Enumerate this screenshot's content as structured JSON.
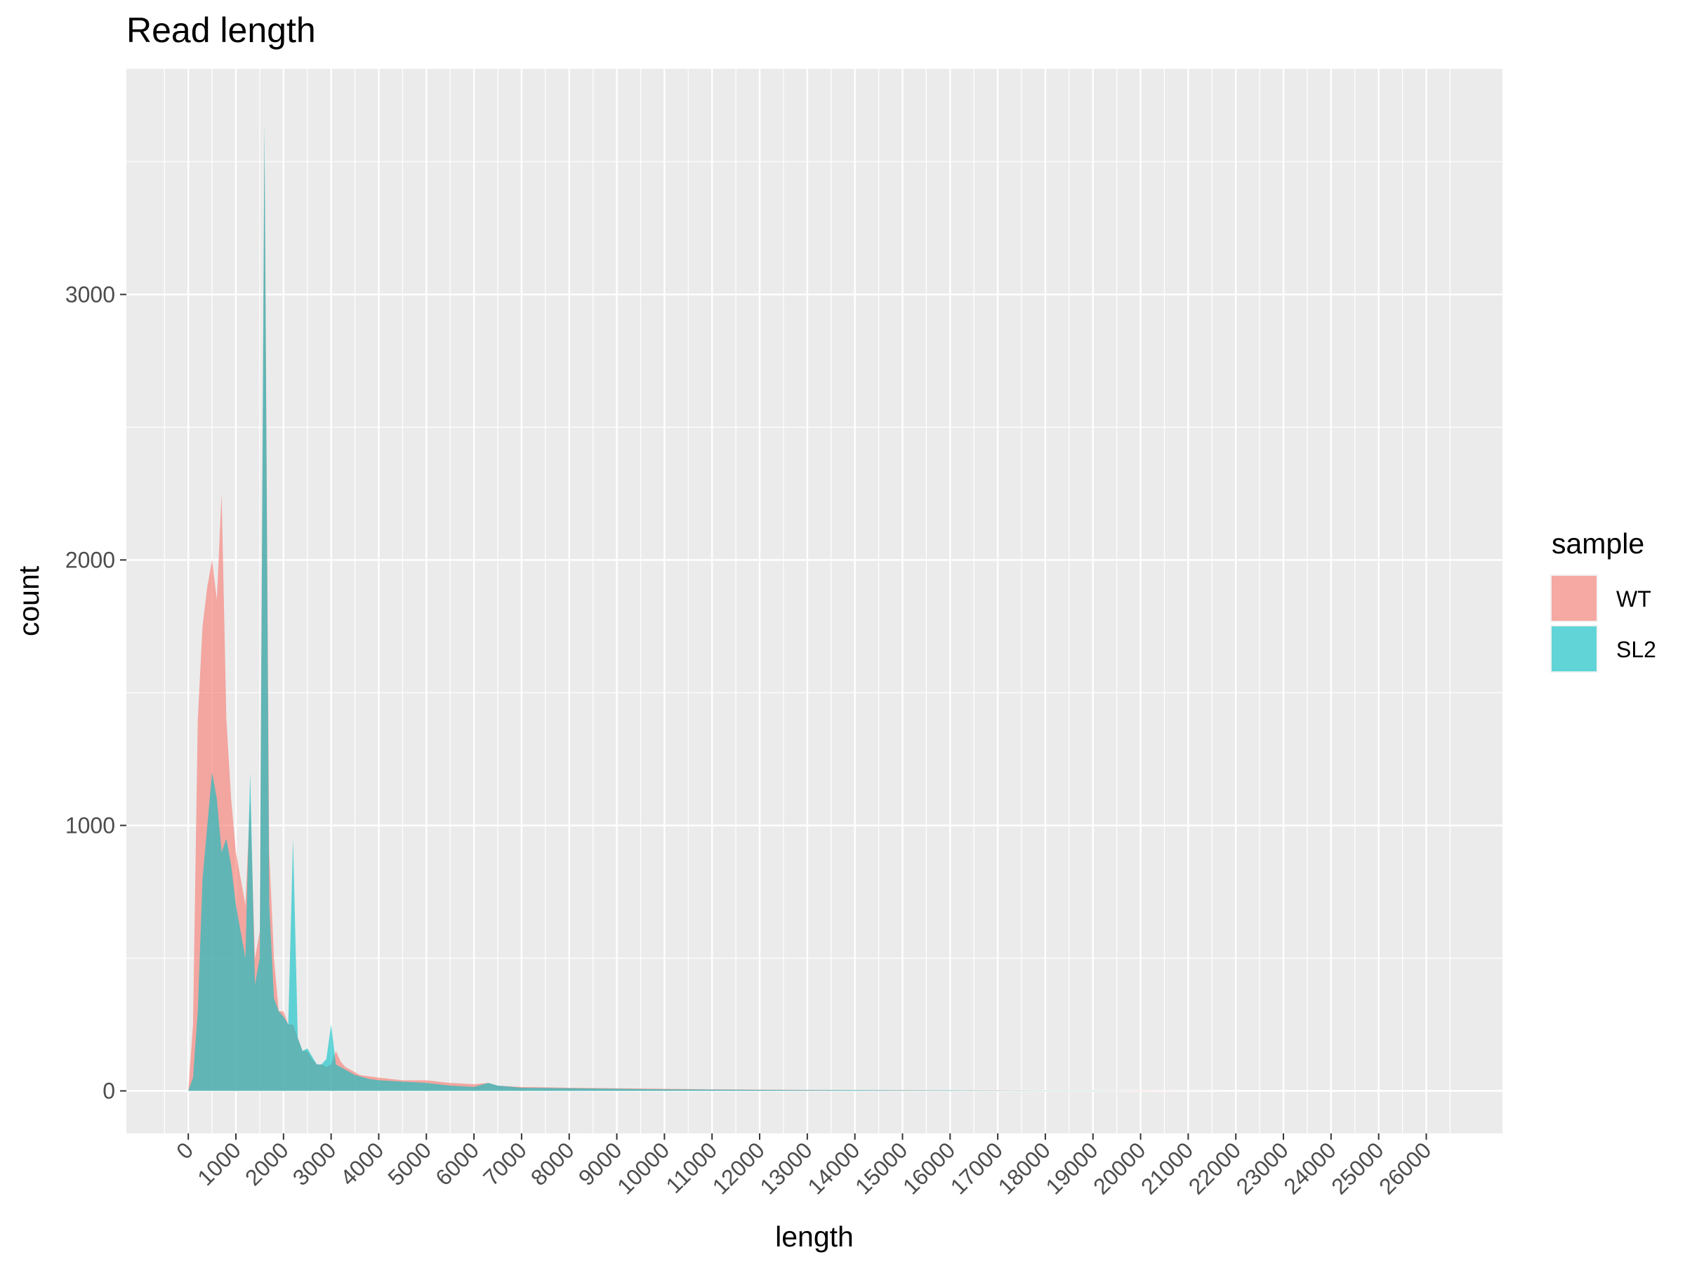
{
  "chart_data": {
    "type": "area",
    "title": "Read length",
    "xlabel": "length",
    "ylabel": "count",
    "xlim": [
      -1300,
      27600
    ],
    "ylim": [
      -160,
      3850
    ],
    "x_ticks": [
      0,
      1000,
      2000,
      3000,
      4000,
      5000,
      6000,
      7000,
      8000,
      9000,
      10000,
      11000,
      12000,
      13000,
      14000,
      15000,
      16000,
      17000,
      18000,
      19000,
      20000,
      21000,
      22000,
      23000,
      24000,
      25000,
      26000
    ],
    "x_tick_labels": [
      "0",
      "1000",
      "2000",
      "3000",
      "4000",
      "5000",
      "6000",
      "7000",
      "8000",
      "9000",
      "10000",
      "11000",
      "12000",
      "13000",
      "14000",
      "15000",
      "16000",
      "17000",
      "18000",
      "19000",
      "20000",
      "21000",
      "22000",
      "23000",
      "24000",
      "25000",
      "26000"
    ],
    "y_ticks": [
      0,
      1000,
      2000,
      3000
    ],
    "y_tick_labels": [
      "0",
      "1000",
      "2000",
      "3000"
    ],
    "grid": true,
    "legend": {
      "title": "sample",
      "position": "right"
    },
    "x": [
      0,
      100,
      200,
      300,
      400,
      500,
      600,
      700,
      800,
      900,
      1000,
      1100,
      1200,
      1300,
      1400,
      1500,
      1600,
      1700,
      1800,
      1900,
      2000,
      2100,
      2200,
      2300,
      2400,
      2500,
      2600,
      2700,
      2800,
      2900,
      3000,
      3100,
      3200,
      3300,
      3400,
      3500,
      3600,
      3800,
      4000,
      4500,
      5000,
      5500,
      6000,
      6300,
      6500,
      7000,
      8000,
      9000,
      10000,
      11000,
      12000,
      13000,
      14000,
      15000,
      16000,
      17000,
      18000,
      19000,
      20000,
      22000,
      24000,
      26000
    ],
    "series": [
      {
        "name": "WT",
        "color": "#F8766D",
        "values": [
          0,
          250,
          1400,
          1750,
          1900,
          2000,
          1850,
          2250,
          1400,
          1100,
          900,
          800,
          700,
          1100,
          500,
          600,
          3600,
          900,
          500,
          300,
          300,
          250,
          250,
          200,
          150,
          150,
          120,
          100,
          100,
          90,
          100,
          150,
          110,
          90,
          80,
          70,
          60,
          55,
          50,
          40,
          40,
          30,
          25,
          30,
          20,
          15,
          12,
          10,
          8,
          6,
          5,
          4,
          3,
          3,
          2,
          2,
          1,
          1,
          1,
          0,
          0,
          0
        ]
      },
      {
        "name": "SL2",
        "color": "#00BFC4",
        "values": [
          0,
          50,
          300,
          800,
          1000,
          1200,
          1100,
          900,
          950,
          850,
          700,
          600,
          500,
          1200,
          400,
          500,
          3650,
          700,
          350,
          300,
          280,
          250,
          950,
          200,
          150,
          160,
          130,
          100,
          100,
          120,
          250,
          100,
          90,
          80,
          70,
          60,
          55,
          45,
          40,
          35,
          30,
          20,
          15,
          30,
          20,
          12,
          10,
          8,
          6,
          5,
          4,
          3,
          3,
          2,
          2,
          1,
          1,
          1,
          0,
          0,
          0,
          0
        ]
      }
    ]
  }
}
